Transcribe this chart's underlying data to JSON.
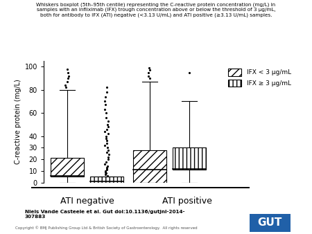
{
  "title_line1": "Whiskers boxplot (5th–95th centile) representing the C-reactive protein concentration (mg/L) in",
  "title_line2": "samples with an infliximab (IFX) trough concentration above or below the threshold of 3 μg/mL,",
  "title_line3": "both for antibody to IFX (ATI) negative (<3.13 U/mL) and ATI positive (≥3.13 U/mL) samples.",
  "ylabel": "C-reactive protein (mg/L)",
  "xlabel_groups": [
    "ATI negative",
    "ATI positive"
  ],
  "legend_labels": [
    "IFX < 3 μg/mL",
    "IFX ≥ 3 μg/mL"
  ],
  "yticks": [
    0,
    10,
    20,
    30,
    40,
    60,
    80,
    100
  ],
  "ylim": [
    0,
    105
  ],
  "boxes": [
    {
      "label": "ATI neg IFX<3",
      "q1": 5,
      "median": 6,
      "q3": 21,
      "whislo": 0,
      "whishi": 80,
      "fliers_above": [
        82,
        84,
        87,
        90,
        92,
        95,
        98
      ],
      "fliers_below": [],
      "hatch": "///",
      "x": 1.0
    },
    {
      "label": "ATI neg IFX>=3",
      "q1": 0,
      "median": 1,
      "q3": 5,
      "whislo": 0,
      "whishi": 5,
      "fliers_above": [
        6,
        7,
        8,
        9,
        10,
        11,
        12,
        13,
        14,
        16,
        18,
        20,
        22,
        24,
        26,
        28,
        30,
        32,
        34,
        36,
        38,
        40,
        42,
        44,
        46,
        48,
        50,
        53,
        56,
        60,
        63,
        67,
        70,
        74,
        78,
        82
      ],
      "fliers_below": [],
      "hatch": "|||",
      "x": 2.0
    },
    {
      "label": "ATI pos IFX<3",
      "q1": 0,
      "median": 11,
      "q3": 28,
      "whislo": 0,
      "whishi": 87,
      "fliers_above": [
        90,
        92,
        95,
        97,
        99
      ],
      "fliers_below": [],
      "hatch": "///",
      "x": 3.1
    },
    {
      "label": "ATI pos IFX>=3",
      "q1": 11,
      "median": 12,
      "q3": 30,
      "whislo": 0,
      "whishi": 70,
      "fliers_above": [
        95
      ],
      "fliers_below": [],
      "hatch": "|||",
      "x": 4.1
    }
  ],
  "author_text": "Niels Vande Casteele et al. Gut doi:10.1136/gutjnl-2014-\n307883",
  "copyright_text": "Copyright © BMJ Publishing Group Ltd & British Society of Gastroenterology.  All rights reserved",
  "gut_logo_color": "#2060a8",
  "background_color": "#ffffff",
  "box_width": 0.85
}
